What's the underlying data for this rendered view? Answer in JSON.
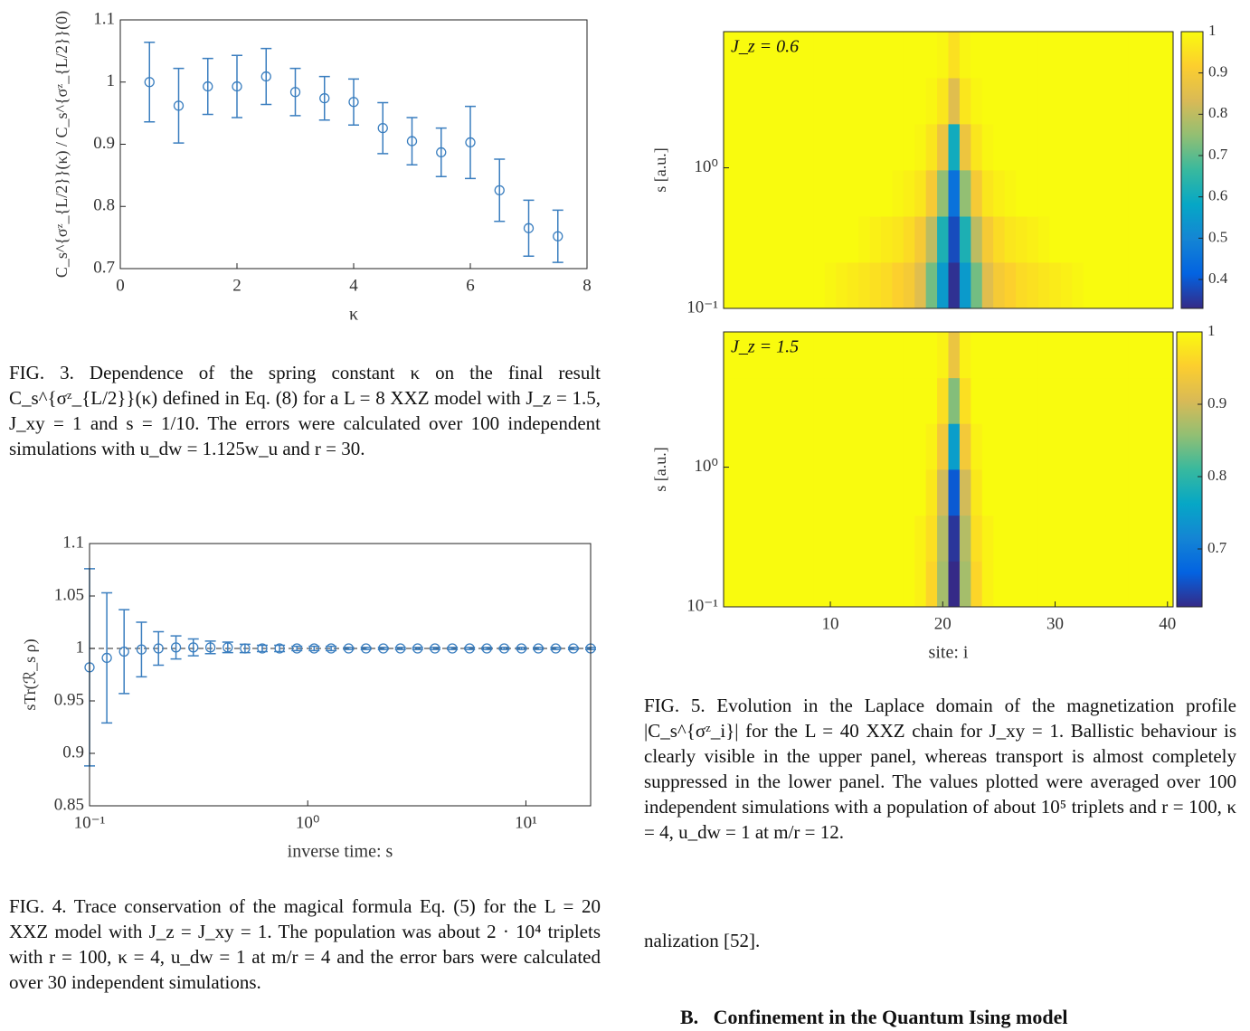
{
  "chart_data": [
    {
      "type": "scatter",
      "xlabel": "κ",
      "ylabel": "C_s^{σᶻ_{L/2}}(κ) / C_s^{σᶻ_{L/2}}(0)",
      "color": "#3a7ebf",
      "x": [
        0.5,
        1,
        1.5,
        2,
        2.5,
        3,
        3.5,
        4,
        4.5,
        5,
        5.5,
        6,
        6.5,
        7,
        7.5
      ],
      "values": [
        1.0,
        0.962,
        0.993,
        0.993,
        1.009,
        0.984,
        0.974,
        0.968,
        0.926,
        0.905,
        0.887,
        0.903,
        0.826,
        0.765,
        0.752
      ],
      "errors": [
        0.064,
        0.06,
        0.045,
        0.05,
        0.045,
        0.038,
        0.035,
        0.037,
        0.041,
        0.038,
        0.039,
        0.058,
        0.05,
        0.045,
        0.042
      ],
      "xlim": [
        0,
        8
      ],
      "xticks": [
        0,
        2,
        4,
        6,
        8
      ],
      "ylim": [
        0.7,
        1.1
      ],
      "yticks": [
        0.7,
        0.8,
        0.9,
        1,
        1.1
      ]
    },
    {
      "type": "scatter",
      "xlabel": "inverse time: s",
      "ylabel": "sTr(ℛ_s ρ)",
      "color": "#3a7ebf",
      "xscale": "log",
      "reference_line": 1,
      "x": [
        0.1,
        0.12,
        0.144,
        0.173,
        0.207,
        0.249,
        0.299,
        0.358,
        0.43,
        0.516,
        0.619,
        0.743,
        0.892,
        1.07,
        1.28,
        1.54,
        1.85,
        2.22,
        2.66,
        3.19,
        3.83,
        4.6,
        5.52,
        6.62,
        7.95,
        9.54,
        11.4,
        13.7,
        16.5,
        19.8
      ],
      "values": [
        0.982,
        0.991,
        0.997,
        0.999,
        1.0,
        1.001,
        1.001,
        1.001,
        1.001,
        1.0,
        1,
        1,
        1,
        1,
        1,
        1,
        1,
        1,
        1,
        1,
        1,
        1,
        1,
        1,
        1,
        1,
        1,
        1,
        1,
        1
      ],
      "errors": [
        0.094,
        0.062,
        0.04,
        0.026,
        0.016,
        0.011,
        0.008,
        0.006,
        0.005,
        0.004,
        0.003,
        0.003,
        0.002,
        0.002,
        0.002,
        0.001,
        0.001,
        0.001,
        0.001,
        0.001,
        0.001,
        0.001,
        0.001,
        0.001,
        0.001,
        0.001,
        0.001,
        0.001,
        0.001,
        0.001
      ],
      "xlim": [
        0.1,
        19.8
      ],
      "xticks": [
        {
          "value": 0.1,
          "label": "10⁻¹"
        },
        {
          "value": 1,
          "label": "10⁰"
        },
        {
          "value": 10,
          "label": "10¹"
        }
      ],
      "ylim": [
        0.85,
        1.1
      ],
      "yticks": [
        0.85,
        0.9,
        0.95,
        1,
        1.05,
        1.1
      ]
    },
    {
      "type": "heatmap",
      "annotation": "J_z = 0.6",
      "ylabel": "s [a.u.]",
      "yscale": "log",
      "x": [
        1,
        2,
        3,
        4,
        5,
        6,
        7,
        8,
        9,
        10,
        11,
        12,
        13,
        14,
        15,
        16,
        17,
        18,
        19,
        20,
        21,
        22,
        23,
        24,
        25,
        26,
        27,
        28,
        29,
        30,
        31,
        32,
        33,
        34,
        35,
        36,
        37,
        38,
        39,
        40
      ],
      "y": [
        0.146,
        0.31,
        0.66,
        1.41,
        2.99,
        6.37
      ],
      "z": [
        [
          1,
          1,
          1,
          1,
          1,
          1,
          1,
          1,
          1,
          0.99,
          0.98,
          0.97,
          0.96,
          0.95,
          0.94,
          0.92,
          0.9,
          0.85,
          0.72,
          0.55,
          0.34,
          0.55,
          0.72,
          0.85,
          0.9,
          0.92,
          0.94,
          0.95,
          0.96,
          0.97,
          0.98,
          0.99,
          1,
          1,
          1,
          1,
          1,
          1,
          1,
          1
        ],
        [
          1,
          1,
          1,
          1,
          1,
          1,
          1,
          1,
          1,
          1,
          1,
          1,
          0.99,
          0.98,
          0.97,
          0.96,
          0.94,
          0.9,
          0.8,
          0.62,
          0.38,
          0.62,
          0.8,
          0.9,
          0.94,
          0.96,
          0.97,
          0.98,
          0.99,
          1,
          1,
          1,
          1,
          1,
          1,
          1,
          1,
          1,
          1,
          1
        ],
        [
          1,
          1,
          1,
          1,
          1,
          1,
          1,
          1,
          1,
          1,
          1,
          1,
          1,
          1,
          1,
          0.99,
          0.98,
          0.96,
          0.9,
          0.75,
          0.45,
          0.75,
          0.9,
          0.96,
          0.98,
          0.99,
          1,
          1,
          1,
          1,
          1,
          1,
          1,
          1,
          1,
          1,
          1,
          1,
          1,
          1
        ],
        [
          1,
          1,
          1,
          1,
          1,
          1,
          1,
          1,
          1,
          1,
          1,
          1,
          1,
          1,
          1,
          1,
          1,
          0.99,
          0.96,
          0.88,
          0.6,
          0.88,
          0.96,
          0.99,
          1,
          1,
          1,
          1,
          1,
          1,
          1,
          1,
          1,
          1,
          1,
          1,
          1,
          1,
          1,
          1
        ],
        [
          1,
          1,
          1,
          1,
          1,
          1,
          1,
          1,
          1,
          1,
          1,
          1,
          1,
          1,
          1,
          1,
          1,
          1,
          0.99,
          0.96,
          0.85,
          0.96,
          0.99,
          1,
          1,
          1,
          1,
          1,
          1,
          1,
          1,
          1,
          1,
          1,
          1,
          1,
          1,
          1,
          1,
          1
        ],
        [
          1,
          1,
          1,
          1,
          1,
          1,
          1,
          1,
          1,
          1,
          1,
          1,
          1,
          1,
          1,
          1,
          1,
          1,
          1,
          0.99,
          0.95,
          0.99,
          1,
          1,
          1,
          1,
          1,
          1,
          1,
          1,
          1,
          1,
          1,
          1,
          1,
          1,
          1,
          1,
          1,
          1
        ]
      ],
      "xlim": [
        0.5,
        40.5
      ],
      "ylim": [
        0.1,
        9.3
      ],
      "yticks": [
        {
          "value": 0.1,
          "label": "10⁻¹"
        },
        {
          "value": 1,
          "label": "10⁰"
        }
      ],
      "clim": [
        0.33,
        1
      ],
      "cticks": [
        0.4,
        0.5,
        0.6,
        0.7,
        0.8,
        0.9,
        1
      ],
      "colormap": [
        "#352a87",
        "#0363e1",
        "#1485d4",
        "#06a7c6",
        "#38b99e",
        "#92bf73",
        "#d9ba56",
        "#fcce2e",
        "#f9fb0e"
      ]
    },
    {
      "type": "heatmap",
      "annotation": "J_z = 1.5",
      "xlabel": "site: i",
      "ylabel": "s [a.u.]",
      "yscale": "log",
      "x": [
        1,
        2,
        3,
        4,
        5,
        6,
        7,
        8,
        9,
        10,
        11,
        12,
        13,
        14,
        15,
        16,
        17,
        18,
        19,
        20,
        21,
        22,
        23,
        24,
        25,
        26,
        27,
        28,
        29,
        30,
        31,
        32,
        33,
        34,
        35,
        36,
        37,
        38,
        39,
        40
      ],
      "y": [
        0.146,
        0.31,
        0.66,
        1.41,
        2.99,
        6.37
      ],
      "z": [
        [
          1,
          1,
          1,
          1,
          1,
          1,
          1,
          1,
          1,
          1,
          1,
          1,
          1,
          1,
          1,
          1,
          1,
          0.99,
          0.96,
          0.87,
          0.62,
          0.87,
          0.96,
          0.99,
          1,
          1,
          1,
          1,
          1,
          1,
          1,
          1,
          1,
          1,
          1,
          1,
          1,
          1,
          1,
          1
        ],
        [
          1,
          1,
          1,
          1,
          1,
          1,
          1,
          1,
          1,
          1,
          1,
          1,
          1,
          1,
          1,
          1,
          1,
          0.99,
          0.97,
          0.88,
          0.63,
          0.88,
          0.97,
          0.99,
          1,
          1,
          1,
          1,
          1,
          1,
          1,
          1,
          1,
          1,
          1,
          1,
          1,
          1,
          1,
          1
        ],
        [
          1,
          1,
          1,
          1,
          1,
          1,
          1,
          1,
          1,
          1,
          1,
          1,
          1,
          1,
          1,
          1,
          1,
          1,
          0.98,
          0.9,
          0.66,
          0.9,
          0.98,
          1,
          1,
          1,
          1,
          1,
          1,
          1,
          1,
          1,
          1,
          1,
          1,
          1,
          1,
          1,
          1,
          1
        ],
        [
          1,
          1,
          1,
          1,
          1,
          1,
          1,
          1,
          1,
          1,
          1,
          1,
          1,
          1,
          1,
          1,
          1,
          1,
          0.99,
          0.94,
          0.75,
          0.94,
          0.99,
          1,
          1,
          1,
          1,
          1,
          1,
          1,
          1,
          1,
          1,
          1,
          1,
          1,
          1,
          1,
          1,
          1
        ],
        [
          1,
          1,
          1,
          1,
          1,
          1,
          1,
          1,
          1,
          1,
          1,
          1,
          1,
          1,
          1,
          1,
          1,
          1,
          1,
          0.97,
          0.85,
          0.97,
          1,
          1,
          1,
          1,
          1,
          1,
          1,
          1,
          1,
          1,
          1,
          1,
          1,
          1,
          1,
          1,
          1,
          1
        ],
        [
          1,
          1,
          1,
          1,
          1,
          1,
          1,
          1,
          1,
          1,
          1,
          1,
          1,
          1,
          1,
          1,
          1,
          1,
          1,
          0.99,
          0.93,
          0.99,
          1,
          1,
          1,
          1,
          1,
          1,
          1,
          1,
          1,
          1,
          1,
          1,
          1,
          1,
          1,
          1,
          1,
          1
        ]
      ],
      "xlim": [
        0.5,
        40.5
      ],
      "xticks": [
        10,
        20,
        30,
        40
      ],
      "ylim": [
        0.1,
        9.3
      ],
      "yticks": [
        {
          "value": 0.1,
          "label": "10⁻¹"
        },
        {
          "value": 1,
          "label": "10⁰"
        }
      ],
      "clim": [
        0.62,
        1
      ],
      "cticks": [
        0.7,
        0.8,
        0.9,
        1
      ],
      "colormap": [
        "#352a87",
        "#0363e1",
        "#1485d4",
        "#06a7c6",
        "#38b99e",
        "#92bf73",
        "#d9ba56",
        "#fcce2e",
        "#f9fb0e"
      ]
    }
  ],
  "captions": {
    "fig3": "FIG. 3. Dependence of the spring constant κ on the final result C_s^{σᶻ_{L/2}}(κ) defined in Eq. (8) for a L = 8 XXZ model with J_z = 1.5, J_xy = 1 and s = 1/10. The errors were calculated over 100 independent simulations with u_dw = 1.125w_u and r = 30.",
    "fig4": "FIG. 4. Trace conservation of the magical formula Eq. (5) for the L = 20 XXZ model with J_z = J_xy = 1. The population was about 2 · 10⁴ triplets with r = 100, κ = 4, u_dw = 1 at m/r = 4 and the error bars were calculated over 30 independent simulations.",
    "fig5": "FIG. 5. Evolution in the Laplace domain of the magnetization profile |C_s^{σᶻ_i}| for the L = 40 XXZ chain for J_xy = 1. Ballistic behaviour is clearly visible in the upper panel, whereas transport is almost completely suppressed in the lower panel. The values plotted were averaged over 100 independent simulations with a population of about 10⁵ triplets and r = 100, κ = 4, u_dw = 1 at m/r = 12."
  },
  "body": {
    "text": "nalization [52].",
    "heading": "B.   Confinement in the Quantum Ising model"
  }
}
